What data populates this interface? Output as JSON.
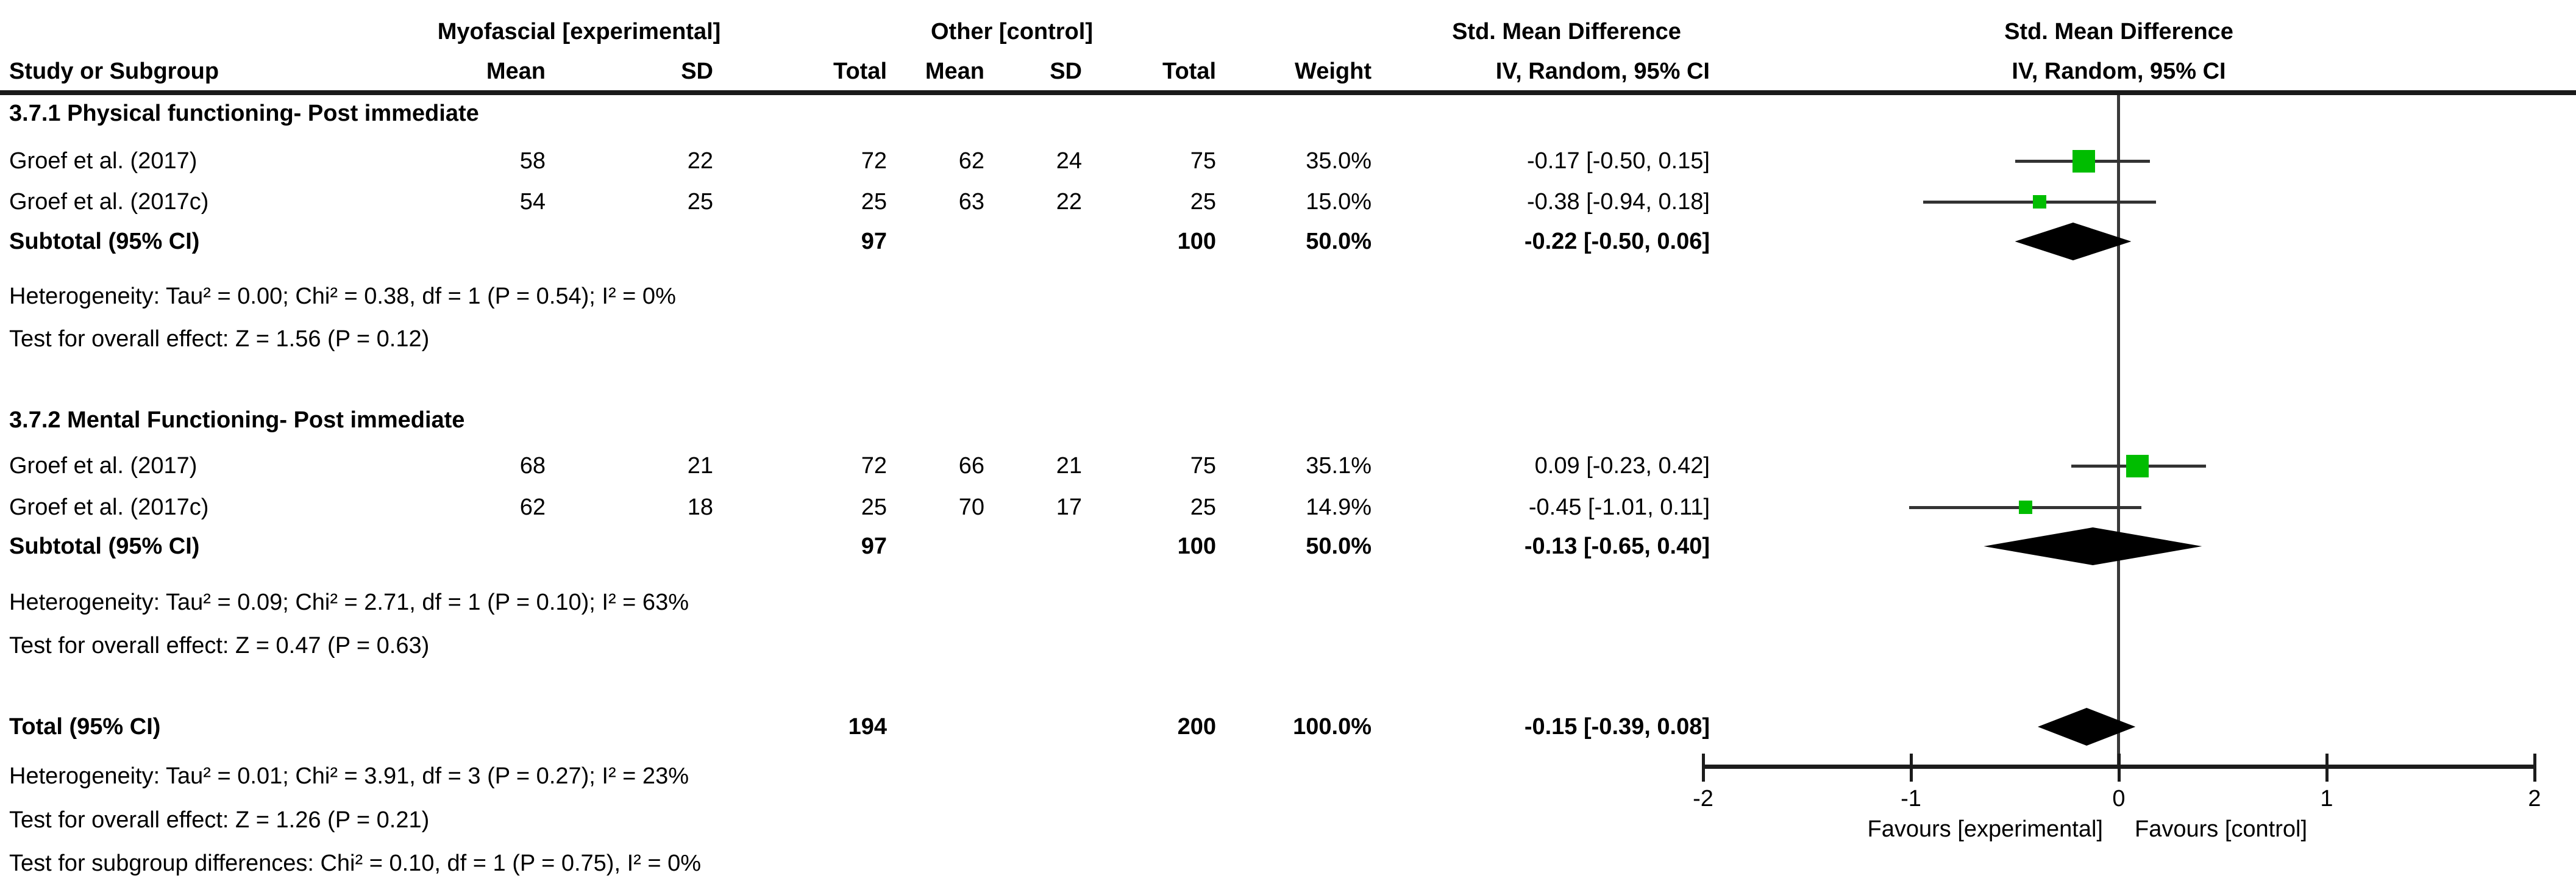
{
  "title_headers": {
    "group_experimental": "Myofascial [experimental]",
    "group_control": "Other [control]",
    "effect_col_title": "Std. Mean Difference",
    "effect_col_subtitle": "IV, Random, 95% CI",
    "plot_title": "Std. Mean Difference",
    "plot_subtitle": "IV, Random, 95% CI",
    "columns": [
      "Study or Subgroup",
      "Mean",
      "SD",
      "Total",
      "Mean",
      "SD",
      "Total",
      "Weight"
    ]
  },
  "chart_data": {
    "type": "forest",
    "effect_measure": "Std. Mean Difference",
    "model": "IV, Random, 95% CI",
    "axis": {
      "min": -2,
      "max": 2,
      "ticks": [
        -2,
        -1,
        0,
        1,
        2
      ],
      "favours_left": "Favours [experimental]",
      "favours_right": "Favours [control]"
    },
    "sections": [
      {
        "title": "3.7.1 Physical functioning- Post immediate",
        "studies": [
          {
            "study": "Groef et al. (2017)",
            "mean_exp": "58",
            "sd_exp": "22",
            "total_exp": "72",
            "mean_ctl": "62",
            "sd_ctl": "24",
            "total_ctl": "75",
            "weight": "35.0%",
            "weight_pct": 35.0,
            "ci_label": "-0.17 [-0.50, 0.15]",
            "est": -0.17,
            "lo": -0.5,
            "hi": 0.15
          },
          {
            "study": "Groef et al. (2017c)",
            "mean_exp": "54",
            "sd_exp": "25",
            "total_exp": "25",
            "mean_ctl": "63",
            "sd_ctl": "22",
            "total_ctl": "25",
            "weight": "15.0%",
            "weight_pct": 15.0,
            "ci_label": "-0.38 [-0.94, 0.18]",
            "est": -0.38,
            "lo": -0.94,
            "hi": 0.18
          }
        ],
        "subtotal": {
          "label": "Subtotal (95% CI)",
          "total_exp": "97",
          "total_ctl": "100",
          "weight": "50.0%",
          "ci_label": "-0.22 [-0.50, 0.06]",
          "est": -0.22,
          "lo": -0.5,
          "hi": 0.06
        },
        "heterogeneity": "Heterogeneity: Tau² = 0.00; Chi² = 0.38, df = 1 (P = 0.54); I² = 0%",
        "overall_effect": "Test for overall effect: Z = 1.56 (P = 0.12)"
      },
      {
        "title": "3.7.2 Mental Functioning- Post immediate",
        "studies": [
          {
            "study": "Groef et al. (2017)",
            "mean_exp": "68",
            "sd_exp": "21",
            "total_exp": "72",
            "mean_ctl": "66",
            "sd_ctl": "21",
            "total_ctl": "75",
            "weight": "35.1%",
            "weight_pct": 35.1,
            "ci_label": "0.09 [-0.23, 0.42]",
            "est": 0.09,
            "lo": -0.23,
            "hi": 0.42
          },
          {
            "study": "Groef et al. (2017c)",
            "mean_exp": "62",
            "sd_exp": "18",
            "total_exp": "25",
            "mean_ctl": "70",
            "sd_ctl": "17",
            "total_ctl": "25",
            "weight": "14.9%",
            "weight_pct": 14.9,
            "ci_label": "-0.45 [-1.01, 0.11]",
            "est": -0.45,
            "lo": -1.01,
            "hi": 0.11
          }
        ],
        "subtotal": {
          "label": "Subtotal (95% CI)",
          "total_exp": "97",
          "total_ctl": "100",
          "weight": "50.0%",
          "ci_label": "-0.13 [-0.65, 0.40]",
          "est": -0.13,
          "lo": -0.65,
          "hi": 0.4
        },
        "heterogeneity": "Heterogeneity: Tau² = 0.09; Chi² = 2.71, df = 1 (P = 0.10); I² = 63%",
        "overall_effect": "Test for overall effect: Z = 0.47 (P = 0.63)"
      }
    ],
    "total": {
      "label": "Total (95% CI)",
      "total_exp": "194",
      "total_ctl": "200",
      "weight": "100.0%",
      "ci_label": "-0.15 [-0.39, 0.08]",
      "est": -0.15,
      "lo": -0.39,
      "hi": 0.08
    },
    "total_heterogeneity": "Heterogeneity: Tau² = 0.01; Chi² = 3.91, df = 3 (P = 0.27); I² = 23%",
    "total_overall_effect": "Test for overall effect: Z = 1.26 (P = 0.21)",
    "subgroup_differences": "Test for subgroup differences: Chi² = 0.10, df = 1 (P = 0.75), I² = 0%"
  },
  "colors": {
    "square": "#00BD00",
    "diamond": "#000000",
    "ci_line": "#333333",
    "zero_line": "#3a3a3a",
    "axis": "#1c1c1c",
    "rule": "#1a1a1a",
    "text": "#000000"
  }
}
